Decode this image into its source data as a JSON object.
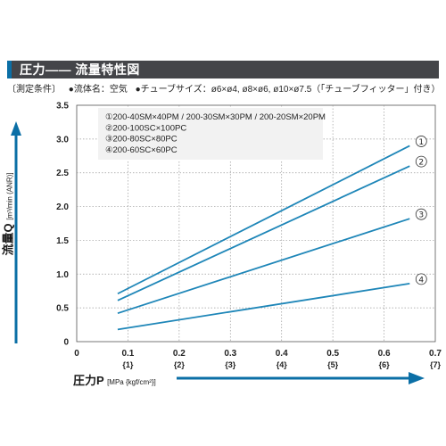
{
  "title": "圧力―― 流量特性図",
  "conditions": {
    "label": "〔測定条件〕",
    "fluid": "●流体名：空気",
    "tube": "●チューブサイズ：ø6×ø4, ø8×ø6, ø10×ø7.5（「チューブフィッター」付き）"
  },
  "colors": {
    "accent": "#0b6fa6",
    "line": "#1e86b8",
    "title_bg": "#444549"
  },
  "chart_data": {
    "type": "line",
    "ylabel": "流量Q",
    "ylabel_unit": "[m³/min (ANR)]",
    "xlabel": "圧力P",
    "xlabel_unit": "[MPa {kgf/cm²}]",
    "xlim": [
      0,
      0.7
    ],
    "ylim": [
      0,
      3.5
    ],
    "x_ticks": [
      "0",
      "0.1",
      "0.2",
      "0.3",
      "0.4",
      "0.5",
      "0.6",
      "0.7"
    ],
    "x_ticks_secondary": [
      "{1}",
      "{2}",
      "{3}",
      "{4}",
      "{5}",
      "{6}",
      "{7}"
    ],
    "y_ticks": [
      "0",
      "0.5",
      "1.0",
      "1.5",
      "2.0",
      "2.5",
      "3.0",
      "3.5"
    ],
    "grid": true,
    "legend": [
      "①200-40SM×40PM / 200-30SM×30PM / 200-20SM×20PM",
      "②200-100SC×100PC",
      "③200-80SC×80PC",
      "④200-60SC×60PC"
    ],
    "series": [
      {
        "marker": "①",
        "x": [
          0.08,
          0.65
        ],
        "y": [
          0.71,
          2.9
        ]
      },
      {
        "marker": "②",
        "x": [
          0.08,
          0.65
        ],
        "y": [
          0.61,
          2.6
        ]
      },
      {
        "marker": "③",
        "x": [
          0.08,
          0.65
        ],
        "y": [
          0.42,
          1.82
        ]
      },
      {
        "marker": "④",
        "x": [
          0.08,
          0.65
        ],
        "y": [
          0.18,
          0.86
        ]
      }
    ]
  }
}
